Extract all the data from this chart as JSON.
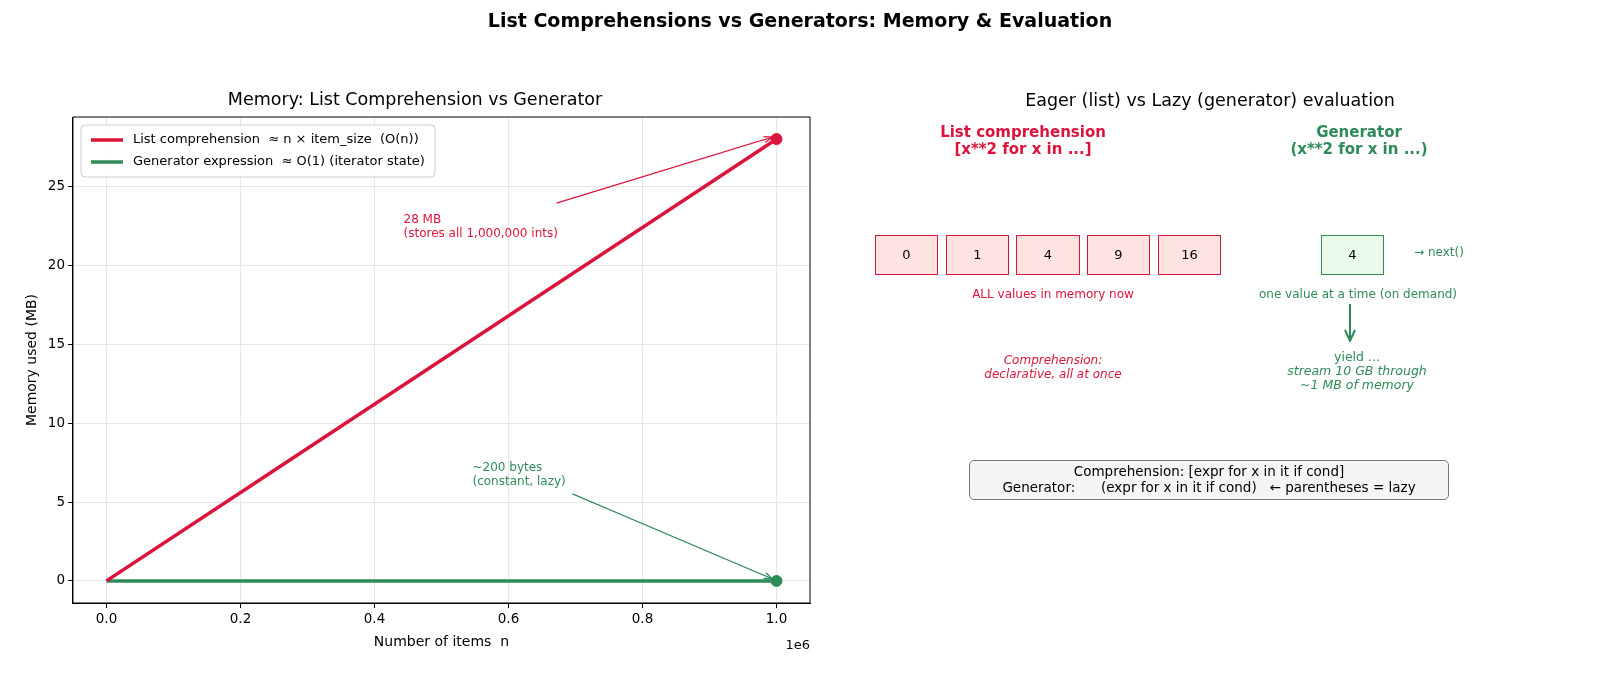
{
  "chart_data": [
    {
      "type": "other",
      "title": "List Comprehensions vs Generators: Memory & Evaluation"
    },
    {
      "type": "line",
      "title": "Memory: List Comprehension vs Generator",
      "xlabel": "Number of items  n",
      "ylabel": "Memory used (MB)",
      "xlim": [
        -0.05,
        1.05
      ],
      "xticks": [
        {
          "value": 0,
          "label": "0.0"
        },
        {
          "value": 0.2,
          "label": "0.2"
        },
        {
          "value": 0.4,
          "label": "0.4"
        },
        {
          "value": 0.6,
          "label": "0.6"
        },
        {
          "value": 0.8,
          "label": "0.8"
        },
        {
          "value": 1,
          "label": "1.0"
        }
      ],
      "ylim": [
        -1.4,
        29.4
      ],
      "yticks": [
        0,
        5,
        10,
        15,
        20,
        25
      ],
      "grid": true,
      "legend": "top left",
      "x": [
        0,
        1
      ],
      "series": [
        {
          "name": "List comprehension  ≈ n × item_size  (O(n))",
          "color": "#dc143c",
          "values": [
            0,
            28
          ]
        },
        {
          "name": "Generator expression  ≈ O(1) (iterator state)",
          "color": "#2e8b57",
          "values": [
            0,
            0
          ]
        },
        {
          "type": "scatter",
          "color": "#dc143c",
          "x": [
            1
          ],
          "values": [
            28
          ],
          "marker": "circle"
        },
        {
          "type": "scatter",
          "color": "#2e8b57",
          "x": [
            1
          ],
          "values": [
            0
          ],
          "marker": "circle"
        }
      ],
      "annotations": [
        {
          "text": "28 MB\n(stores all 1,000,000 ints)",
          "x": 1,
          "y": 28
        },
        {
          "text": "~200 bytes\n(constant, lazy)",
          "x": 1,
          "y": 0
        },
        "1e6"
      ]
    },
    {
      "type": "other",
      "title": "Eager (list) vs Lazy (generator) evaluation",
      "annotations": [
        "List comprehension\n[x**2 for x in ...]",
        "Generator\n(x**2 for x in ...)",
        "0",
        "1",
        "4",
        "9",
        "16",
        "4",
        "→ next()",
        "ALL values in memory now",
        "one value at a time (on demand)",
        "Comprehension:\ndeclarative, all at once",
        "yield ...",
        "stream 10 GB through\n~1 MB of memory",
        "Comprehension: [expr for x in it if cond]\nGenerator:      (expr for x in it if cond)   ← parentheses = lazy"
      ]
    }
  ]
}
